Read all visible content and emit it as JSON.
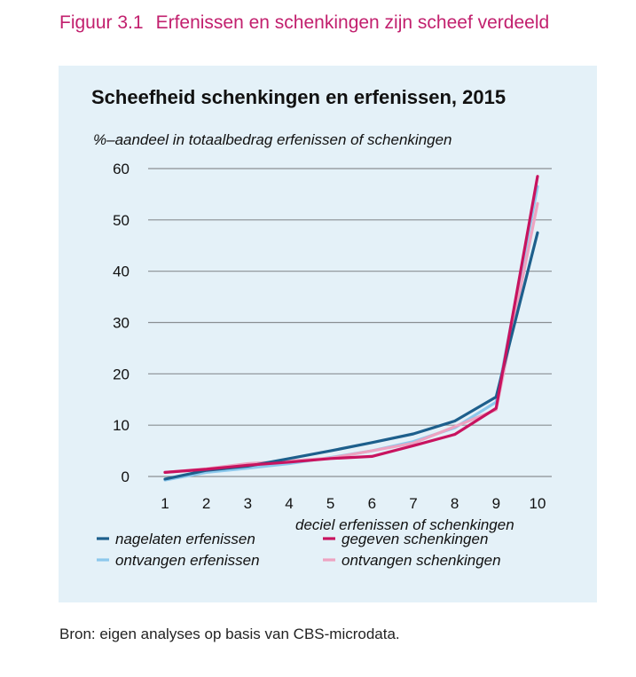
{
  "figure": {
    "number": "Figuur 3.1",
    "title": "Erfenissen en schenkingen zijn scheef verdeeld"
  },
  "source": "Bron: eigen analyses op basis van CBS-microdata.",
  "chart_data": {
    "type": "line",
    "title": "Scheefheid schenkingen en erfenissen, 2015",
    "ylabel": "%–aandeel in totaalbedrag erfenissen of schenkingen",
    "xlabel": "deciel erfenissen of schenkingen",
    "x": [
      1,
      2,
      3,
      4,
      5,
      6,
      7,
      8,
      9,
      10
    ],
    "ylim": [
      0,
      60
    ],
    "yticks": [
      0,
      10,
      20,
      30,
      40,
      50,
      60
    ],
    "grid": true,
    "legend_position": "bottom",
    "series": [
      {
        "name": "nagelaten erfenissen",
        "color": "#1d5f8c",
        "values": [
          -0.5,
          1.2,
          2.0,
          3.5,
          5.0,
          6.6,
          8.3,
          10.8,
          15.5,
          47.5
        ]
      },
      {
        "name": "gegeven schenkingen",
        "color": "#c8135f",
        "values": [
          0.8,
          1.4,
          2.2,
          2.8,
          3.5,
          3.9,
          6.0,
          8.2,
          13.3,
          58.5
        ]
      },
      {
        "name": "ontvangen erfenissen",
        "color": "#8cc8ec",
        "values": [
          -0.7,
          0.8,
          1.6,
          2.5,
          3.7,
          5.0,
          6.8,
          9.5,
          14.5,
          56.5
        ]
      },
      {
        "name": "ontvangen schenkingen",
        "color": "#eda3c1",
        "values": [
          0.8,
          1.5,
          2.5,
          3.0,
          3.6,
          5.0,
          6.5,
          9.7,
          13.0,
          53.2
        ]
      }
    ]
  }
}
